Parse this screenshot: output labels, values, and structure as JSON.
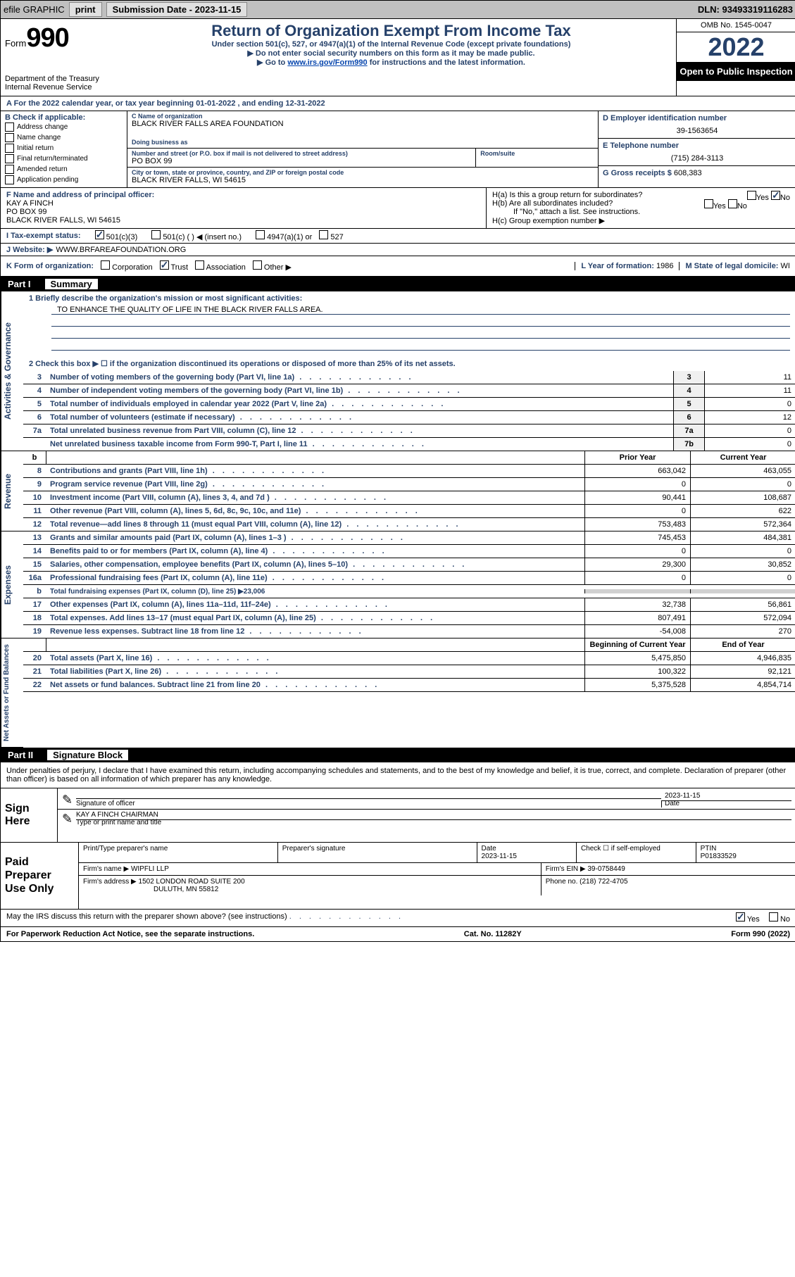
{
  "topbar": {
    "efile": "efile GRAPHIC",
    "print": "print",
    "subdate_label": "Submission Date - ",
    "subdate": "2023-11-15",
    "dln": "DLN: 93493319116283"
  },
  "header": {
    "form_prefix": "Form",
    "form_num": "990",
    "dept": "Department of the Treasury",
    "irs": "Internal Revenue Service",
    "title": "Return of Organization Exempt From Income Tax",
    "sub1": "Under section 501(c), 527, or 4947(a)(1) of the Internal Revenue Code (except private foundations)",
    "sub2": "▶ Do not enter social security numbers on this form as it may be made public.",
    "sub3_pre": "▶ Go to ",
    "sub3_link": "www.irs.gov/Form990",
    "sub3_post": " for instructions and the latest information.",
    "omb": "OMB No. 1545-0047",
    "year": "2022",
    "open": "Open to Public Inspection"
  },
  "line_a": "A For the 2022 calendar year, or tax year beginning 01-01-2022    , and ending 12-31-2022",
  "section_b": {
    "label": "B Check if applicable:",
    "items": [
      "Address change",
      "Name change",
      "Initial return",
      "Final return/terminated",
      "Amended return",
      "Application pending"
    ]
  },
  "section_c": {
    "name_label": "C Name of organization",
    "name": "BLACK RIVER FALLS AREA FOUNDATION",
    "dba_label": "Doing business as",
    "dba": "",
    "addr_label": "Number and street (or P.O. box if mail is not delivered to street address)",
    "room_label": "Room/suite",
    "addr": "PO BOX 99",
    "city_label": "City or town, state or province, country, and ZIP or foreign postal code",
    "city": "BLACK RIVER FALLS, WI  54615"
  },
  "section_d": {
    "label": "D Employer identification number",
    "ein": "39-1563654",
    "phone_label": "E Telephone number",
    "phone": "(715) 284-3113",
    "gross_label": "G Gross receipts $",
    "gross": "608,383"
  },
  "section_f": {
    "label": "F Name and address of principal officer:",
    "name": "KAY A FINCH",
    "addr1": "PO BOX 99",
    "addr2": "BLACK RIVER FALLS, WI  54615"
  },
  "section_h": {
    "ha": "H(a)  Is this a group return for subordinates?",
    "hb": "H(b)  Are all subordinates included?",
    "hb_note": "If \"No,\" attach a list. See instructions.",
    "hc": "H(c)  Group exemption number ▶"
  },
  "tax_status": {
    "label": "I   Tax-exempt status:",
    "opt1": "501(c)(3)",
    "opt2": "501(c) (   ) ◀ (insert no.)",
    "opt3": "4947(a)(1) or",
    "opt4": "527"
  },
  "website": {
    "label": "J   Website: ▶",
    "val": "WWW.BRFAREAFOUNDATION.ORG"
  },
  "line_k": {
    "label": "K Form of organization:",
    "opts": [
      "Corporation",
      "Trust",
      "Association",
      "Other ▶"
    ],
    "checked_idx": 1
  },
  "line_l": {
    "label": "L Year of formation:",
    "val": "1986"
  },
  "line_m": {
    "label": "M State of legal domicile:",
    "val": "WI"
  },
  "part1": {
    "title": "Part I",
    "subtitle": "Summary"
  },
  "governance": {
    "label": "Activities & Governance",
    "l1": "1   Briefly describe the organization's mission or most significant activities:",
    "mission": "TO ENHANCE THE QUALITY OF LIFE IN THE BLACK RIVER FALLS AREA.",
    "l2": "2   Check this box ▶ ☐  if the organization discontinued its operations or disposed of more than 25% of its net assets.",
    "lines": [
      {
        "n": "3",
        "d": "Number of voting members of the governing body (Part VI, line 1a)",
        "b": "3",
        "v": "11"
      },
      {
        "n": "4",
        "d": "Number of independent voting members of the governing body (Part VI, line 1b)",
        "b": "4",
        "v": "11"
      },
      {
        "n": "5",
        "d": "Total number of individuals employed in calendar year 2022 (Part V, line 2a)",
        "b": "5",
        "v": "0"
      },
      {
        "n": "6",
        "d": "Total number of volunteers (estimate if necessary)",
        "b": "6",
        "v": "12"
      },
      {
        "n": "7a",
        "d": "Total unrelated business revenue from Part VIII, column (C), line 12",
        "b": "7a",
        "v": "0"
      },
      {
        "n": "",
        "d": "Net unrelated business taxable income from Form 990-T, Part I, line 11",
        "b": "7b",
        "v": "0"
      }
    ]
  },
  "revenue": {
    "label": "Revenue",
    "header_b": "b",
    "col_prior": "Prior Year",
    "col_current": "Current Year",
    "lines": [
      {
        "n": "8",
        "d": "Contributions and grants (Part VIII, line 1h)",
        "p": "663,042",
        "c": "463,055"
      },
      {
        "n": "9",
        "d": "Program service revenue (Part VIII, line 2g)",
        "p": "0",
        "c": "0"
      },
      {
        "n": "10",
        "d": "Investment income (Part VIII, column (A), lines 3, 4, and 7d )",
        "p": "90,441",
        "c": "108,687"
      },
      {
        "n": "11",
        "d": "Other revenue (Part VIII, column (A), lines 5, 6d, 8c, 9c, 10c, and 11e)",
        "p": "0",
        "c": "622"
      },
      {
        "n": "12",
        "d": "Total revenue—add lines 8 through 11 (must equal Part VIII, column (A), line 12)",
        "p": "753,483",
        "c": "572,364"
      }
    ]
  },
  "expenses": {
    "label": "Expenses",
    "lines": [
      {
        "n": "13",
        "d": "Grants and similar amounts paid (Part IX, column (A), lines 1–3 )",
        "p": "745,453",
        "c": "484,381"
      },
      {
        "n": "14",
        "d": "Benefits paid to or for members (Part IX, column (A), line 4)",
        "p": "0",
        "c": "0"
      },
      {
        "n": "15",
        "d": "Salaries, other compensation, employee benefits (Part IX, column (A), lines 5–10)",
        "p": "29,300",
        "c": "30,852"
      },
      {
        "n": "16a",
        "d": "Professional fundraising fees (Part IX, column (A), line 11e)",
        "p": "0",
        "c": "0"
      }
    ],
    "l16b_n": "b",
    "l16b_d": "Total fundraising expenses (Part IX, column (D), line 25) ▶23,006",
    "lines2": [
      {
        "n": "17",
        "d": "Other expenses (Part IX, column (A), lines 11a–11d, 11f–24e)",
        "p": "32,738",
        "c": "56,861"
      },
      {
        "n": "18",
        "d": "Total expenses. Add lines 13–17 (must equal Part IX, column (A), line 25)",
        "p": "807,491",
        "c": "572,094"
      },
      {
        "n": "19",
        "d": "Revenue less expenses. Subtract line 18 from line 12",
        "p": "-54,008",
        "c": "270"
      }
    ]
  },
  "netassets": {
    "label": "Net Assets or Fund Balances",
    "col_begin": "Beginning of Current Year",
    "col_end": "End of Year",
    "lines": [
      {
        "n": "20",
        "d": "Total assets (Part X, line 16)",
        "p": "5,475,850",
        "c": "4,946,835"
      },
      {
        "n": "21",
        "d": "Total liabilities (Part X, line 26)",
        "p": "100,322",
        "c": "92,121"
      },
      {
        "n": "22",
        "d": "Net assets or fund balances. Subtract line 21 from line 20",
        "p": "5,375,528",
        "c": "4,854,714"
      }
    ]
  },
  "part2": {
    "title": "Part II",
    "subtitle": "Signature Block",
    "declaration": "Under penalties of perjury, I declare that I have examined this return, including accompanying schedules and statements, and to the best of my knowledge and belief, it is true, correct, and complete. Declaration of preparer (other than officer) is based on all information of which preparer has any knowledge."
  },
  "sign": {
    "label": "Sign Here",
    "sig_of_officer": "Signature of officer",
    "date_label": "Date",
    "date": "2023-11-15",
    "name": "KAY A FINCH  CHAIRMAN",
    "name_label": "Type or print name and title"
  },
  "paid": {
    "label": "Paid Preparer Use Only",
    "h_name": "Print/Type preparer's name",
    "h_sig": "Preparer's signature",
    "h_date": "Date",
    "date": "2023-11-15",
    "h_check": "Check ☐ if self-employed",
    "h_ptin": "PTIN",
    "ptin": "P01833529",
    "firm_name_l": "Firm's name    ▶",
    "firm_name": "WIPFLI LLP",
    "firm_ein_l": "Firm's EIN ▶",
    "firm_ein": "39-0758449",
    "firm_addr_l": "Firm's address ▶",
    "firm_addr1": "1502 LONDON ROAD SUITE 200",
    "firm_addr2": "DULUTH, MN  55812",
    "phone_l": "Phone no.",
    "phone": "(218) 722-4705"
  },
  "footer": {
    "discuss": "May the IRS discuss this return with the preparer shown above? (see instructions)",
    "yes": "Yes",
    "no": "No",
    "paperwork": "For Paperwork Reduction Act Notice, see the separate instructions.",
    "cat": "Cat. No. 11282Y",
    "form": "Form 990 (2022)"
  }
}
